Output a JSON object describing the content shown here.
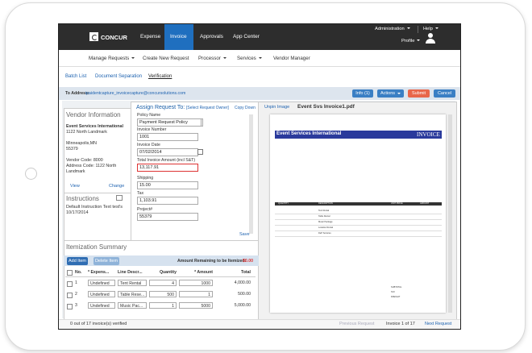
{
  "nav": {
    "logo": "CONCUR",
    "tabs": [
      "Expense",
      "Invoice",
      "Approvals",
      "App Center"
    ],
    "admin": "Administration",
    "help": "Help",
    "profile": "Profile"
  },
  "subnav": [
    "Manage Requests",
    "Create New Request",
    "Processor",
    "Services",
    "Vendor Manager"
  ],
  "views": [
    "Batch List",
    "Document Separation",
    "Verification"
  ],
  "toolbar": {
    "to_label": "To Address:",
    "to_address": "ipaidentcapture_invoicecapture@concursolutions.com",
    "buttons": [
      "Info (1)",
      "Actions",
      "Submit",
      "Cancel"
    ]
  },
  "vendor": {
    "title": "Vendor Information",
    "name": "Event Services International",
    "lines": [
      "1122 North Landmark",
      "Minneapolis,MN",
      "55379",
      "Vendor Code: 8000",
      "Address Code: 1122 North Landmark"
    ],
    "links": [
      "View",
      "Change"
    ]
  },
  "instructions": {
    "title": "Instructions",
    "text": "Default Instruction Text test's 10/17/2014"
  },
  "form": {
    "assign": "Assign Request To:",
    "owner": "[Select Request Owner]",
    "copy_down": "Copy Down",
    "save": "Save",
    "fields": [
      {
        "label": "Policy Name",
        "value": "Payment Request Policy"
      },
      {
        "label": "Invoice Number",
        "value": "1001"
      },
      {
        "label": "Invoice Date",
        "value": "07/02/2014"
      },
      {
        "label": "Total Invoice Amount (incl S&T)",
        "value": "13,117.91"
      },
      {
        "label": "Shipping",
        "value": "15.00"
      },
      {
        "label": "Tax",
        "value": "1,103.91"
      },
      {
        "label": "Project#",
        "value": "55379"
      }
    ]
  },
  "image": {
    "unpin": "Unpin Image",
    "file": "Event Svs Invoice1.pdf",
    "vendor": "Event Services International",
    "heading": "INVOICE",
    "headers": [
      "QUANTITY",
      "DESCRIPTION",
      "UNIT PRICE",
      "AMOUNT"
    ],
    "items": [
      "Tent Rental",
      "Table Rental",
      "Music Package",
      "Location Rental",
      "DeP Services"
    ],
    "totals": [
      "SUBTOTAL",
      "TAX",
      "FREIGHT"
    ]
  },
  "itemization": {
    "title": "Itemization Summary",
    "add": "Add Item",
    "delete": "Delete Item",
    "remaining_label": "Amount Remaining to be Itemized:",
    "remaining": "$0.00",
    "headers": [
      "No.",
      "* Expens...",
      "Line Descr...",
      "Quantity",
      "* Amount",
      "Total"
    ],
    "rows": [
      [
        "1",
        "Undefined",
        "Tent Rental",
        "4",
        "1000",
        "4,000.00"
      ],
      [
        "2",
        "Undefined",
        "Table Rese...",
        "500",
        "1",
        "500.00"
      ],
      [
        "3",
        "Undefined",
        "Music Pac...",
        "1",
        "5000",
        "5,000.00"
      ]
    ]
  },
  "footer": {
    "status": "0 out of 17 invoice(s) verified",
    "previous": "Previous Request",
    "position": "Invoice 1 of 17",
    "next": "Next Request"
  }
}
